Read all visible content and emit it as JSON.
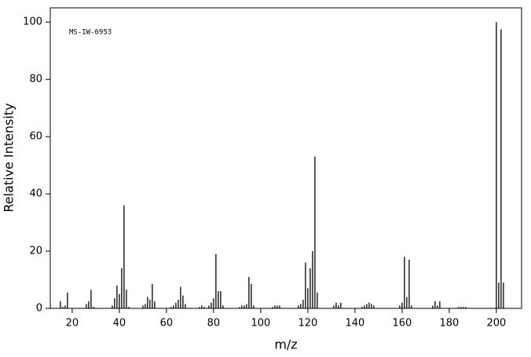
{
  "chart_data": {
    "type": "stick",
    "annotation": "MS-IW-6953",
    "xlabel": "m/z",
    "ylabel": "Relative Intensity",
    "x": [
      15,
      16,
      17,
      18,
      26,
      27,
      28,
      29,
      37,
      38,
      39,
      40,
      41,
      42,
      43,
      44,
      50,
      51,
      52,
      53,
      54,
      55,
      62,
      63,
      64,
      65,
      66,
      67,
      68,
      74,
      75,
      76,
      78,
      79,
      80,
      81,
      82,
      83,
      84,
      91,
      92,
      93,
      94,
      95,
      96,
      97,
      105,
      106,
      107,
      108,
      116,
      117,
      118,
      119,
      120,
      121,
      122,
      123,
      124,
      131,
      132,
      133,
      134,
      143,
      144,
      145,
      146,
      147,
      148,
      159,
      160,
      161,
      162,
      163,
      164,
      173,
      174,
      175,
      176,
      184,
      185,
      186,
      187,
      200,
      201,
      202,
      203
    ],
    "values": [
      2.5,
      0.5,
      1,
      5.5,
      1.5,
      2.5,
      6.5,
      0.5,
      1,
      3.5,
      8,
      5,
      14,
      36,
      6.5,
      0.5,
      1,
      1.5,
      4,
      3,
      8.5,
      2.5,
      0.5,
      1,
      2,
      3,
      7.5,
      4.5,
      1.5,
      0.5,
      1,
      0.5,
      1,
      2,
      3.5,
      19,
      6,
      6,
      1,
      0.5,
      1,
      1,
      1.5,
      11,
      8.5,
      1,
      0.5,
      1,
      1,
      1,
      1,
      1.5,
      3,
      16,
      7,
      14,
      20,
      53,
      5.5,
      1,
      2,
      1,
      2,
      0.5,
      1,
      1.5,
      2,
      1.5,
      1,
      1,
      2,
      18,
      4,
      17,
      1,
      1,
      2.5,
      1,
      2.5,
      0.5,
      0.5,
      0.5,
      0.5,
      100,
      9,
      97.5,
      9
    ],
    "color": "#000000",
    "xlim": [
      10.7,
      210.7
    ],
    "ylim": [
      0,
      105
    ],
    "xticks": [
      20,
      40,
      60,
      80,
      100,
      120,
      140,
      160,
      180,
      200
    ],
    "yticks": [
      0,
      20,
      40,
      60,
      80,
      100
    ]
  }
}
